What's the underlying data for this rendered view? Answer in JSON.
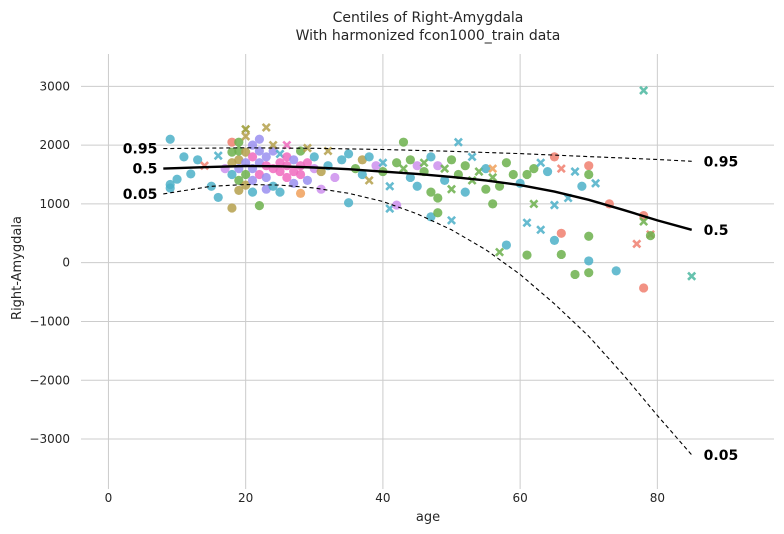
{
  "chart_data": {
    "type": "scatter",
    "title": "Centiles of Right-Amygdala",
    "subtitle": "With harmonized fcon1000_train data",
    "xlabel": "age",
    "ylabel": "Right-Amygdala",
    "xlim": [
      -4,
      97
    ],
    "ylim": [
      -3850,
      3550
    ],
    "xticks": [
      0,
      20,
      40,
      60,
      80
    ],
    "yticks": [
      -3000,
      -2000,
      -1000,
      0,
      1000,
      2000,
      3000
    ],
    "xtick_labels": [
      "0",
      "20",
      "40",
      "60",
      "80"
    ],
    "ytick_labels": [
      "−3000",
      "−2000",
      "−1000",
      "0",
      "1000",
      "2000",
      "3000"
    ],
    "grid": true,
    "centiles": [
      {
        "label": "0.95",
        "style": "dashed",
        "x": [
          8,
          15,
          20,
          25,
          30,
          35,
          40,
          45,
          50,
          55,
          60,
          65,
          70,
          75,
          80,
          85
        ],
        "y": [
          1940,
          1950,
          1955,
          1950,
          1945,
          1935,
          1925,
          1910,
          1895,
          1875,
          1855,
          1830,
          1805,
          1780,
          1755,
          1725
        ]
      },
      {
        "label": "0.5",
        "style": "solid",
        "x": [
          8,
          15,
          20,
          25,
          30,
          35,
          40,
          45,
          50,
          55,
          60,
          65,
          70,
          75,
          80,
          85
        ],
        "y": [
          1600,
          1630,
          1645,
          1640,
          1620,
          1590,
          1550,
          1510,
          1460,
          1400,
          1320,
          1210,
          1070,
          900,
          720,
          560
        ]
      },
      {
        "label": "0.05",
        "style": "dashed",
        "x": [
          8,
          15,
          20,
          25,
          30,
          35,
          40,
          45,
          50,
          55,
          60,
          65,
          70,
          75,
          80,
          85
        ],
        "y": [
          1170,
          1300,
          1330,
          1320,
          1270,
          1180,
          1040,
          830,
          560,
          220,
          -200,
          -700,
          -1250,
          -1900,
          -2600,
          -3270
        ]
      }
    ],
    "points": [
      [
        9,
        2100,
        "#4cb0c8",
        "o"
      ],
      [
        9,
        1330,
        "#4cb0c8",
        "o"
      ],
      [
        9,
        1270,
        "#4cb0c8",
        "o"
      ],
      [
        10,
        1420,
        "#4cb0c8",
        "o"
      ],
      [
        11,
        1800,
        "#4cb0c8",
        "o"
      ],
      [
        12,
        1510,
        "#4cb0c8",
        "o"
      ],
      [
        13,
        1750,
        "#4cb0c8",
        "o"
      ],
      [
        14,
        1650,
        "#f07f6f",
        "x"
      ],
      [
        15,
        1300,
        "#4cb0c8",
        "o"
      ],
      [
        16,
        1110,
        "#4cb0c8",
        "o"
      ],
      [
        16,
        1820,
        "#4cb0c8",
        "x"
      ],
      [
        17,
        1600,
        "#cd8fed",
        "o"
      ],
      [
        18,
        930,
        "#b5a04c",
        "o"
      ],
      [
        18,
        1880,
        "#6cb04c",
        "o"
      ],
      [
        18,
        1700,
        "#b5a04c",
        "o"
      ],
      [
        18,
        1500,
        "#4cb0c8",
        "o"
      ],
      [
        18,
        2050,
        "#f07f6f",
        "o"
      ],
      [
        19,
        1750,
        "#b5a04c",
        "o"
      ],
      [
        19,
        1400,
        "#6cb04c",
        "o"
      ],
      [
        19,
        1900,
        "#6cb04c",
        "o"
      ],
      [
        19,
        1230,
        "#b5a04c",
        "o"
      ],
      [
        19,
        1600,
        "#9a8ff0",
        "o"
      ],
      [
        19,
        2050,
        "#6cb04c",
        "o"
      ],
      [
        20,
        2270,
        "#9a9a30",
        "x"
      ],
      [
        20,
        2150,
        "#b5a04c",
        "x"
      ],
      [
        20,
        1880,
        "#b5a04c",
        "o"
      ],
      [
        20,
        1500,
        "#6cb04c",
        "o"
      ],
      [
        20,
        1320,
        "#b5a04c",
        "o"
      ],
      [
        20,
        1700,
        "#9a8ff0",
        "o"
      ],
      [
        21,
        1200,
        "#4cb0c8",
        "o"
      ],
      [
        21,
        1600,
        "#9a8ff0",
        "o"
      ],
      [
        21,
        1800,
        "#f06abe",
        "o"
      ],
      [
        21,
        2000,
        "#9a8ff0",
        "o"
      ],
      [
        21,
        1400,
        "#9a8ff0",
        "o"
      ],
      [
        22,
        970,
        "#6cb04c",
        "o"
      ],
      [
        22,
        1700,
        "#9a8ff0",
        "o"
      ],
      [
        22,
        1900,
        "#9a8ff0",
        "o"
      ],
      [
        22,
        1500,
        "#f06abe",
        "o"
      ],
      [
        22,
        2100,
        "#9a8ff0",
        "o"
      ],
      [
        23,
        1250,
        "#9a8ff0",
        "o"
      ],
      [
        23,
        1650,
        "#f06abe",
        "o"
      ],
      [
        23,
        1800,
        "#9a8ff0",
        "o"
      ],
      [
        23,
        2300,
        "#b5a04c",
        "x"
      ],
      [
        23,
        1450,
        "#9a8ff0",
        "o"
      ],
      [
        24,
        1600,
        "#f06abe",
        "o"
      ],
      [
        24,
        1900,
        "#9a8ff0",
        "o"
      ],
      [
        24,
        1300,
        "#4cb0c8",
        "o"
      ],
      [
        24,
        2000,
        "#b5a04c",
        "x"
      ],
      [
        25,
        1700,
        "#f06abe",
        "o"
      ],
      [
        25,
        1550,
        "#f06abe",
        "o"
      ],
      [
        25,
        1850,
        "#4cb0c8",
        "x"
      ],
      [
        25,
        1200,
        "#4cb0c8",
        "o"
      ],
      [
        26,
        1650,
        "#f06abe",
        "o"
      ],
      [
        26,
        1450,
        "#f06abe",
        "o"
      ],
      [
        26,
        2000,
        "#f06abe",
        "x"
      ],
      [
        26,
        1800,
        "#f06abe",
        "o"
      ],
      [
        27,
        1550,
        "#f06abe",
        "o"
      ],
      [
        27,
        1750,
        "#9a8ff0",
        "o"
      ],
      [
        27,
        1350,
        "#9a8ff0",
        "o"
      ],
      [
        28,
        1180,
        "#f0a05a",
        "o"
      ],
      [
        28,
        1650,
        "#f06abe",
        "o"
      ],
      [
        28,
        1900,
        "#6cb04c",
        "o"
      ],
      [
        28,
        1500,
        "#f06abe",
        "o"
      ],
      [
        29,
        1700,
        "#f06abe",
        "o"
      ],
      [
        29,
        1400,
        "#9a8ff0",
        "o"
      ],
      [
        29,
        1950,
        "#b5a04c",
        "x"
      ],
      [
        30,
        1600,
        "#cd8fed",
        "o"
      ],
      [
        30,
        1800,
        "#4cb0c8",
        "o"
      ],
      [
        31,
        1250,
        "#cd8fed",
        "o"
      ],
      [
        31,
        1550,
        "#b5a04c",
        "o"
      ],
      [
        32,
        1900,
        "#b5a04c",
        "x"
      ],
      [
        32,
        1650,
        "#4cb0c8",
        "o"
      ],
      [
        33,
        1450,
        "#cd8fed",
        "o"
      ],
      [
        34,
        1750,
        "#4cb0c8",
        "o"
      ],
      [
        35,
        1020,
        "#4cb0c8",
        "o"
      ],
      [
        35,
        1850,
        "#4cb0c8",
        "o"
      ],
      [
        36,
        1600,
        "#6cb04c",
        "o"
      ],
      [
        37,
        1750,
        "#b5a04c",
        "o"
      ],
      [
        37,
        1500,
        "#4cb0c8",
        "o"
      ],
      [
        38,
        1400,
        "#b5a04c",
        "x"
      ],
      [
        38,
        1800,
        "#4cb0c8",
        "o"
      ],
      [
        39,
        1650,
        "#cd8fed",
        "o"
      ],
      [
        40,
        1550,
        "#6cb04c",
        "o"
      ],
      [
        40,
        1700,
        "#4cb0c8",
        "x"
      ],
      [
        41,
        920,
        "#4cb0c8",
        "x"
      ],
      [
        41,
        1300,
        "#4cb0c8",
        "x"
      ],
      [
        42,
        980,
        "#cd8fed",
        "o"
      ],
      [
        42,
        1700,
        "#6cb04c",
        "o"
      ],
      [
        43,
        2050,
        "#6cb04c",
        "o"
      ],
      [
        43,
        1600,
        "#6cb04c",
        "x"
      ],
      [
        44,
        1450,
        "#4cb0c8",
        "o"
      ],
      [
        44,
        1750,
        "#6cb04c",
        "o"
      ],
      [
        45,
        1300,
        "#4cb0c8",
        "o"
      ],
      [
        45,
        1650,
        "#cd8fed",
        "o"
      ],
      [
        46,
        1700,
        "#6cb04c",
        "x"
      ],
      [
        46,
        1550,
        "#6cb04c",
        "o"
      ],
      [
        47,
        780,
        "#4cb0c8",
        "o"
      ],
      [
        47,
        1200,
        "#6cb04c",
        "o"
      ],
      [
        47,
        1800,
        "#4cb0c8",
        "o"
      ],
      [
        48,
        850,
        "#6cb04c",
        "o"
      ],
      [
        48,
        1100,
        "#6cb04c",
        "o"
      ],
      [
        48,
        1650,
        "#cd8fed",
        "o"
      ],
      [
        49,
        1400,
        "#4cb0c8",
        "o"
      ],
      [
        49,
        1600,
        "#6cb04c",
        "x"
      ],
      [
        50,
        720,
        "#4cb0c8",
        "x"
      ],
      [
        50,
        1250,
        "#6cb04c",
        "x"
      ],
      [
        50,
        1750,
        "#6cb04c",
        "o"
      ],
      [
        51,
        1500,
        "#6cb04c",
        "o"
      ],
      [
        51,
        2050,
        "#4cb0c8",
        "x"
      ],
      [
        52,
        1200,
        "#4cb0c8",
        "o"
      ],
      [
        52,
        1650,
        "#6cb04c",
        "o"
      ],
      [
        53,
        1400,
        "#6cb04c",
        "x"
      ],
      [
        53,
        1800,
        "#4cb0c8",
        "x"
      ],
      [
        54,
        1550,
        "#6cb04c",
        "x"
      ],
      [
        55,
        1250,
        "#6cb04c",
        "o"
      ],
      [
        55,
        1600,
        "#4cb0c8",
        "o"
      ],
      [
        56,
        1000,
        "#6cb04c",
        "o"
      ],
      [
        56,
        1450,
        "#6cb04c",
        "x"
      ],
      [
        56,
        1600,
        "#f0a05a",
        "x"
      ],
      [
        57,
        180,
        "#6cb04c",
        "x"
      ],
      [
        57,
        1300,
        "#6cb04c",
        "o"
      ],
      [
        58,
        1700,
        "#6cb04c",
        "o"
      ],
      [
        58,
        300,
        "#4cb0c8",
        "o"
      ],
      [
        59,
        1500,
        "#6cb04c",
        "o"
      ],
      [
        60,
        1350,
        "#4cb0c8",
        "o"
      ],
      [
        61,
        130,
        "#6cb04c",
        "o"
      ],
      [
        61,
        680,
        "#4cb0c8",
        "x"
      ],
      [
        61,
        1500,
        "#6cb04c",
        "o"
      ],
      [
        62,
        1000,
        "#6cb04c",
        "x"
      ],
      [
        62,
        1600,
        "#6cb04c",
        "o"
      ],
      [
        63,
        560,
        "#4cb0c8",
        "x"
      ],
      [
        63,
        1700,
        "#4cb0c8",
        "x"
      ],
      [
        64,
        1550,
        "#4cb0c8",
        "o"
      ],
      [
        65,
        380,
        "#4cb0c8",
        "o"
      ],
      [
        65,
        980,
        "#4cb0c8",
        "x"
      ],
      [
        65,
        1800,
        "#f07f6f",
        "o"
      ],
      [
        66,
        500,
        "#f07f6f",
        "o"
      ],
      [
        66,
        140,
        "#6cb04c",
        "o"
      ],
      [
        66,
        1600,
        "#f07f6f",
        "x"
      ],
      [
        67,
        1100,
        "#4cb0c8",
        "x"
      ],
      [
        68,
        -200,
        "#6cb04c",
        "o"
      ],
      [
        68,
        1550,
        "#4cb0c8",
        "x"
      ],
      [
        69,
        1300,
        "#4cb0c8",
        "o"
      ],
      [
        70,
        450,
        "#6cb04c",
        "o"
      ],
      [
        70,
        30,
        "#4cb0c8",
        "o"
      ],
      [
        70,
        -170,
        "#6cb04c",
        "o"
      ],
      [
        70,
        1650,
        "#f07f6f",
        "o"
      ],
      [
        70,
        1500,
        "#6cb04c",
        "o"
      ],
      [
        71,
        1350,
        "#4cb0c8",
        "x"
      ],
      [
        73,
        1000,
        "#f07f6f",
        "o"
      ],
      [
        74,
        -140,
        "#4cb0c8",
        "o"
      ],
      [
        77,
        320,
        "#f07f6f",
        "x"
      ],
      [
        78,
        2930,
        "#4cb8a0",
        "x"
      ],
      [
        78,
        800,
        "#f07f6f",
        "o"
      ],
      [
        78,
        -430,
        "#f07f6f",
        "o"
      ],
      [
        78,
        700,
        "#6cb04c",
        "x"
      ],
      [
        79,
        480,
        "#f07f6f",
        "x"
      ],
      [
        79,
        460,
        "#6cb04c",
        "o"
      ],
      [
        85,
        -230,
        "#4cb8a0",
        "x"
      ]
    ]
  }
}
